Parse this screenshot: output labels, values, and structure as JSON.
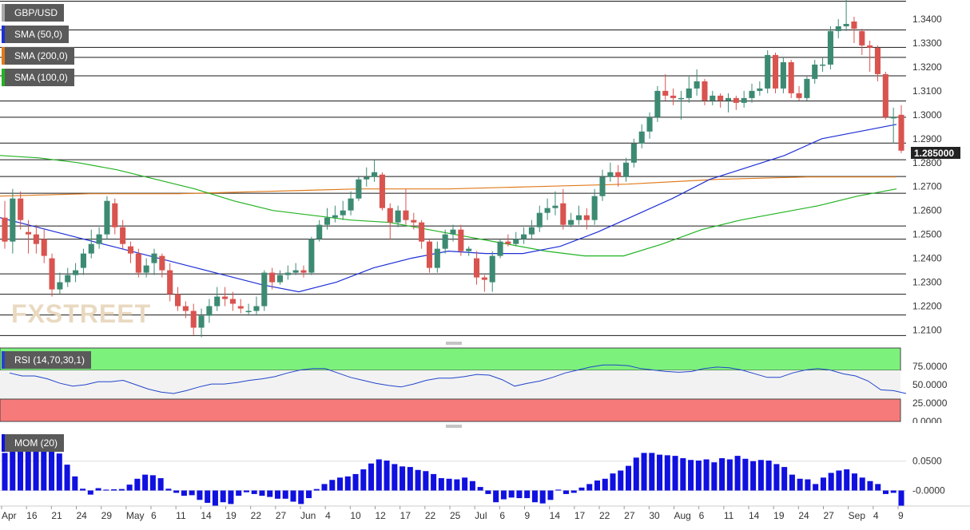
{
  "chart_data": [
    {
      "type": "candlestick",
      "symbol": "GBP/USD",
      "ylim": [
        1.2065,
        1.348
      ],
      "price_ticks": [
        "1.3400",
        "1.3300",
        "1.3200",
        "1.3100",
        "1.3000",
        "1.2900",
        "1.2800",
        "1.2700",
        "1.2600",
        "1.2500",
        "1.2400",
        "1.2300",
        "1.2200",
        "1.2100"
      ],
      "last_price": "1.285000",
      "watermark": "FXSTREET",
      "horizontal_levels": [
        1.3475,
        1.3355,
        1.3282,
        1.324,
        1.3163,
        1.3058,
        1.299,
        1.2882,
        1.2812,
        1.2742,
        1.2672,
        1.2535,
        1.248,
        1.2335,
        1.225,
        1.2163,
        1.2077
      ],
      "x_ticks": [
        "Apr",
        "16",
        "21",
        "24",
        "29",
        "May",
        "6",
        "11",
        "14",
        "19",
        "22",
        "27",
        "Jun",
        "4",
        "10",
        "12",
        "17",
        "22",
        "25",
        "Jul",
        "6",
        "9",
        "14",
        "17",
        "22",
        "27",
        "30",
        "Aug",
        "6",
        "11",
        "14",
        "19",
        "24",
        "27",
        "Sep",
        "4",
        "9"
      ],
      "candles": [
        [
          1.257,
          1.247,
          1.264,
          1.244
        ],
        [
          1.247,
          1.265,
          1.269,
          1.242
        ],
        [
          1.265,
          1.256,
          1.268,
          1.252
        ],
        [
          1.251,
          1.25,
          1.256,
          1.242
        ],
        [
          1.25,
          1.246,
          1.254,
          1.242
        ],
        [
          1.248,
          1.241,
          1.252,
          1.238
        ],
        [
          1.24,
          1.227,
          1.242,
          1.224
        ],
        [
          1.227,
          1.23,
          1.234,
          1.225
        ],
        [
          1.23,
          1.233,
          1.236,
          1.228
        ],
        [
          1.233,
          1.235,
          1.238,
          1.23
        ],
        [
          1.236,
          1.242,
          1.244,
          1.233
        ],
        [
          1.242,
          1.246,
          1.252,
          1.24
        ],
        [
          1.246,
          1.25,
          1.253,
          1.244
        ],
        [
          1.25,
          1.264,
          1.266,
          1.248
        ],
        [
          1.263,
          1.253,
          1.265,
          1.25
        ],
        [
          1.253,
          1.246,
          1.256,
          1.244
        ],
        [
          1.245,
          1.242,
          1.247,
          1.238
        ],
        [
          1.242,
          1.234,
          1.244,
          1.232
        ],
        [
          1.234,
          1.237,
          1.24,
          1.232
        ],
        [
          1.238,
          1.242,
          1.244,
          1.233
        ],
        [
          1.241,
          1.235,
          1.242,
          1.232
        ],
        [
          1.235,
          1.225,
          1.238,
          1.222
        ],
        [
          1.225,
          1.22,
          1.228,
          1.218
        ],
        [
          1.22,
          1.218,
          1.222,
          1.215
        ],
        [
          1.218,
          1.211,
          1.221,
          1.208
        ],
        [
          1.211,
          1.216,
          1.219,
          1.207
        ],
        [
          1.216,
          1.22,
          1.223,
          1.213
        ],
        [
          1.22,
          1.224,
          1.228,
          1.218
        ],
        [
          1.224,
          1.223,
          1.228,
          1.22
        ],
        [
          1.223,
          1.221,
          1.226,
          1.218
        ],
        [
          1.22,
          1.219,
          1.223,
          1.217
        ],
        [
          1.218,
          1.218,
          1.221,
          1.216
        ],
        [
          1.218,
          1.22,
          1.224,
          1.216
        ],
        [
          1.22,
          1.234,
          1.235,
          1.218
        ],
        [
          1.234,
          1.23,
          1.236,
          1.227
        ],
        [
          1.23,
          1.233,
          1.235,
          1.229
        ],
        [
          1.233,
          1.234,
          1.237,
          1.231
        ],
        [
          1.234,
          1.235,
          1.238,
          1.233
        ],
        [
          1.235,
          1.234,
          1.237,
          1.232
        ],
        [
          1.234,
          1.248,
          1.249,
          1.233
        ],
        [
          1.248,
          1.254,
          1.256,
          1.247
        ],
        [
          1.254,
          1.257,
          1.261,
          1.252
        ],
        [
          1.257,
          1.258,
          1.262,
          1.255
        ],
        [
          1.258,
          1.26,
          1.264,
          1.256
        ],
        [
          1.26,
          1.265,
          1.268,
          1.258
        ],
        [
          1.265,
          1.273,
          1.274,
          1.264
        ],
        [
          1.273,
          1.274,
          1.278,
          1.27
        ],
        [
          1.274,
          1.276,
          1.281,
          1.272
        ],
        [
          1.275,
          1.261,
          1.276,
          1.26
        ],
        [
          1.261,
          1.255,
          1.263,
          1.248
        ],
        [
          1.255,
          1.26,
          1.262,
          1.253
        ],
        [
          1.26,
          1.256,
          1.269,
          1.254
        ],
        [
          1.256,
          1.255,
          1.259,
          1.252
        ],
        [
          1.255,
          1.247,
          1.256,
          1.244
        ],
        [
          1.247,
          1.236,
          1.248,
          1.234
        ],
        [
          1.236,
          1.244,
          1.247,
          1.234
        ],
        [
          1.244,
          1.25,
          1.252,
          1.242
        ],
        [
          1.25,
          1.252,
          1.254,
          1.247
        ],
        [
          1.252,
          1.243,
          1.254,
          1.241
        ],
        [
          1.243,
          1.244,
          1.245,
          1.241
        ],
        [
          1.24,
          1.232,
          1.243,
          1.229
        ],
        [
          1.232,
          1.231,
          1.233,
          1.226
        ],
        [
          1.23,
          1.241,
          1.243,
          1.226
        ],
        [
          1.241,
          1.247,
          1.248,
          1.24
        ],
        [
          1.247,
          1.246,
          1.25,
          1.245
        ],
        [
          1.246,
          1.248,
          1.251,
          1.245
        ],
        [
          1.248,
          1.25,
          1.253,
          1.246
        ],
        [
          1.25,
          1.253,
          1.256,
          1.248
        ],
        [
          1.253,
          1.259,
          1.262,
          1.251
        ],
        [
          1.259,
          1.261,
          1.265,
          1.256
        ],
        [
          1.261,
          1.262,
          1.268,
          1.258
        ],
        [
          1.263,
          1.254,
          1.269,
          1.252
        ],
        [
          1.254,
          1.256,
          1.259,
          1.253
        ],
        [
          1.256,
          1.258,
          1.262,
          1.254
        ],
        [
          1.258,
          1.256,
          1.261,
          1.252
        ],
        [
          1.256,
          1.266,
          1.269,
          1.254
        ],
        [
          1.266,
          1.274,
          1.277,
          1.264
        ],
        [
          1.274,
          1.276,
          1.28,
          1.272
        ],
        [
          1.276,
          1.274,
          1.279,
          1.27
        ],
        [
          1.274,
          1.28,
          1.282,
          1.272
        ],
        [
          1.28,
          1.288,
          1.29,
          1.278
        ],
        [
          1.288,
          1.293,
          1.296,
          1.286
        ],
        [
          1.293,
          1.299,
          1.301,
          1.29
        ],
        [
          1.299,
          1.31,
          1.312,
          1.297
        ],
        [
          1.31,
          1.308,
          1.317,
          1.306
        ],
        [
          1.308,
          1.307,
          1.311,
          1.304
        ],
        [
          1.307,
          1.307,
          1.31,
          1.298
        ],
        [
          1.307,
          1.311,
          1.316,
          1.305
        ],
        [
          1.311,
          1.314,
          1.319,
          1.308
        ],
        [
          1.314,
          1.306,
          1.315,
          1.304
        ],
        [
          1.306,
          1.308,
          1.31,
          1.304
        ],
        [
          1.308,
          1.306,
          1.309,
          1.303
        ],
        [
          1.306,
          1.307,
          1.309,
          1.301
        ],
        [
          1.307,
          1.305,
          1.308,
          1.302
        ],
        [
          1.305,
          1.307,
          1.31,
          1.303
        ],
        [
          1.307,
          1.31,
          1.313,
          1.305
        ],
        [
          1.31,
          1.311,
          1.314,
          1.308
        ],
        [
          1.311,
          1.325,
          1.327,
          1.309
        ],
        [
          1.325,
          1.311,
          1.326,
          1.309
        ],
        [
          1.311,
          1.322,
          1.324,
          1.309
        ],
        [
          1.322,
          1.309,
          1.323,
          1.307
        ],
        [
          1.309,
          1.307,
          1.312,
          1.306
        ],
        [
          1.307,
          1.315,
          1.316,
          1.306
        ],
        [
          1.315,
          1.321,
          1.323,
          1.313
        ],
        [
          1.321,
          1.321,
          1.324,
          1.318
        ],
        [
          1.321,
          1.335,
          1.337,
          1.319
        ],
        [
          1.335,
          1.337,
          1.34,
          1.332
        ],
        [
          1.337,
          1.338,
          1.348,
          1.335
        ],
        [
          1.339,
          1.336,
          1.341,
          1.33
        ],
        [
          1.335,
          1.329,
          1.336,
          1.325
        ],
        [
          1.329,
          1.328,
          1.331,
          1.318
        ],
        [
          1.328,
          1.317,
          1.329,
          1.314
        ],
        [
          1.317,
          1.299,
          1.318,
          1.298
        ],
        [
          1.299,
          1.299,
          1.303,
          1.288
        ],
        [
          1.3,
          1.285,
          1.304,
          1.284
        ]
      ],
      "sma_50": [
        1.257,
        1.253,
        1.249,
        1.245,
        1.241,
        1.237,
        1.233,
        1.229,
        1.226,
        1.23,
        1.236,
        1.24,
        1.243,
        1.242,
        1.242,
        1.245,
        1.251,
        1.258,
        1.265,
        1.273,
        1.278,
        1.283,
        1.29,
        1.293,
        1.296
      ],
      "sma_100": [
        1.283,
        1.282,
        1.28,
        1.277,
        1.273,
        1.269,
        1.264,
        1.26,
        1.258,
        1.256,
        1.255,
        1.252,
        1.249,
        1.246,
        1.243,
        1.241,
        1.241,
        1.246,
        1.252,
        1.256,
        1.259,
        1.262,
        1.266,
        1.269
      ],
      "sma_200": [
        1.266,
        1.267,
        1.267,
        1.268,
        1.269,
        1.269,
        1.27,
        1.271,
        1.273,
        1.274,
        1.274
      ],
      "indicators": [
        {
          "label": "SMA (50,0)",
          "color": "#1e2fd6"
        },
        {
          "label": "SMA (200,0)",
          "color": "#e07a1a"
        },
        {
          "label": "SMA (100,0)",
          "color": "#22b322"
        }
      ]
    },
    {
      "type": "line",
      "label": "RSI (14,70,30,1)",
      "ylim": [
        0,
        100
      ],
      "overbought": 70,
      "oversold": 30,
      "tick_labels": [
        "75.0000",
        "50.0000",
        "25.0000",
        "0.0000"
      ],
      "tick_values": [
        75,
        50,
        25,
        0
      ],
      "color": "#2244cc",
      "values": [
        66,
        62,
        62,
        58,
        52,
        48,
        50,
        54,
        54,
        56,
        50,
        44,
        40,
        38,
        42,
        47,
        51,
        51,
        53,
        56,
        58,
        61,
        66,
        70,
        72,
        72,
        66,
        60,
        56,
        52,
        49,
        47,
        51,
        56,
        59,
        59,
        61,
        64,
        63,
        57,
        48,
        52,
        55,
        60,
        66,
        70,
        74,
        77,
        77,
        76,
        72,
        70,
        68,
        67,
        68,
        72,
        74,
        73,
        70,
        65,
        60,
        60,
        66,
        70,
        72,
        70,
        65,
        62,
        55,
        43,
        42,
        38
      ]
    },
    {
      "type": "bar",
      "label": "MOM (20)",
      "tick_labels": [
        "0.0500",
        "-0.0000"
      ],
      "tick_values": [
        0.05,
        0.0
      ],
      "ylim": [
        -0.0265,
        0.104
      ],
      "color": "#1010e0",
      "values": [
        0.064,
        0.075,
        0.089,
        0.085,
        0.08,
        0.078,
        0.069,
        0.063,
        0.044,
        0.024,
        0.003,
        -0.007,
        0.004,
        0.0015,
        0.002,
        0.0025,
        0.01,
        0.02,
        0.027,
        0.026,
        0.021,
        0.003,
        -0.004,
        -0.009,
        -0.008,
        -0.016,
        -0.021,
        -0.026,
        -0.02,
        -0.023,
        -0.009,
        -0.003,
        -0.006,
        -0.009,
        -0.011,
        -0.014,
        -0.014,
        -0.019,
        -0.023,
        -0.013,
        0.0025,
        0.011,
        0.018,
        0.022,
        0.024,
        0.028,
        0.036,
        0.046,
        0.053,
        0.051,
        0.045,
        0.041,
        0.04,
        0.035,
        0.033,
        0.028,
        0.021,
        0.02,
        0.019,
        0.022,
        0.016,
        0.006,
        -0.006,
        -0.02,
        -0.015,
        -0.012,
        -0.013,
        -0.013,
        -0.02,
        -0.022,
        -0.016,
        0.0015,
        -0.006,
        -0.004,
        0.005,
        0.011,
        0.017,
        0.02,
        0.029,
        0.034,
        0.042,
        0.056,
        0.064,
        0.064,
        0.061,
        0.06,
        0.059,
        0.055,
        0.052,
        0.051,
        0.053,
        0.048,
        0.055,
        0.053,
        0.059,
        0.054,
        0.05,
        0.052,
        0.051,
        0.045,
        0.04,
        0.027,
        0.02,
        0.019,
        0.011,
        0.022,
        0.03,
        0.034,
        0.036,
        0.029,
        0.022,
        0.016,
        0.011,
        -0.006,
        -0.004,
        -0.026
      ]
    }
  ]
}
